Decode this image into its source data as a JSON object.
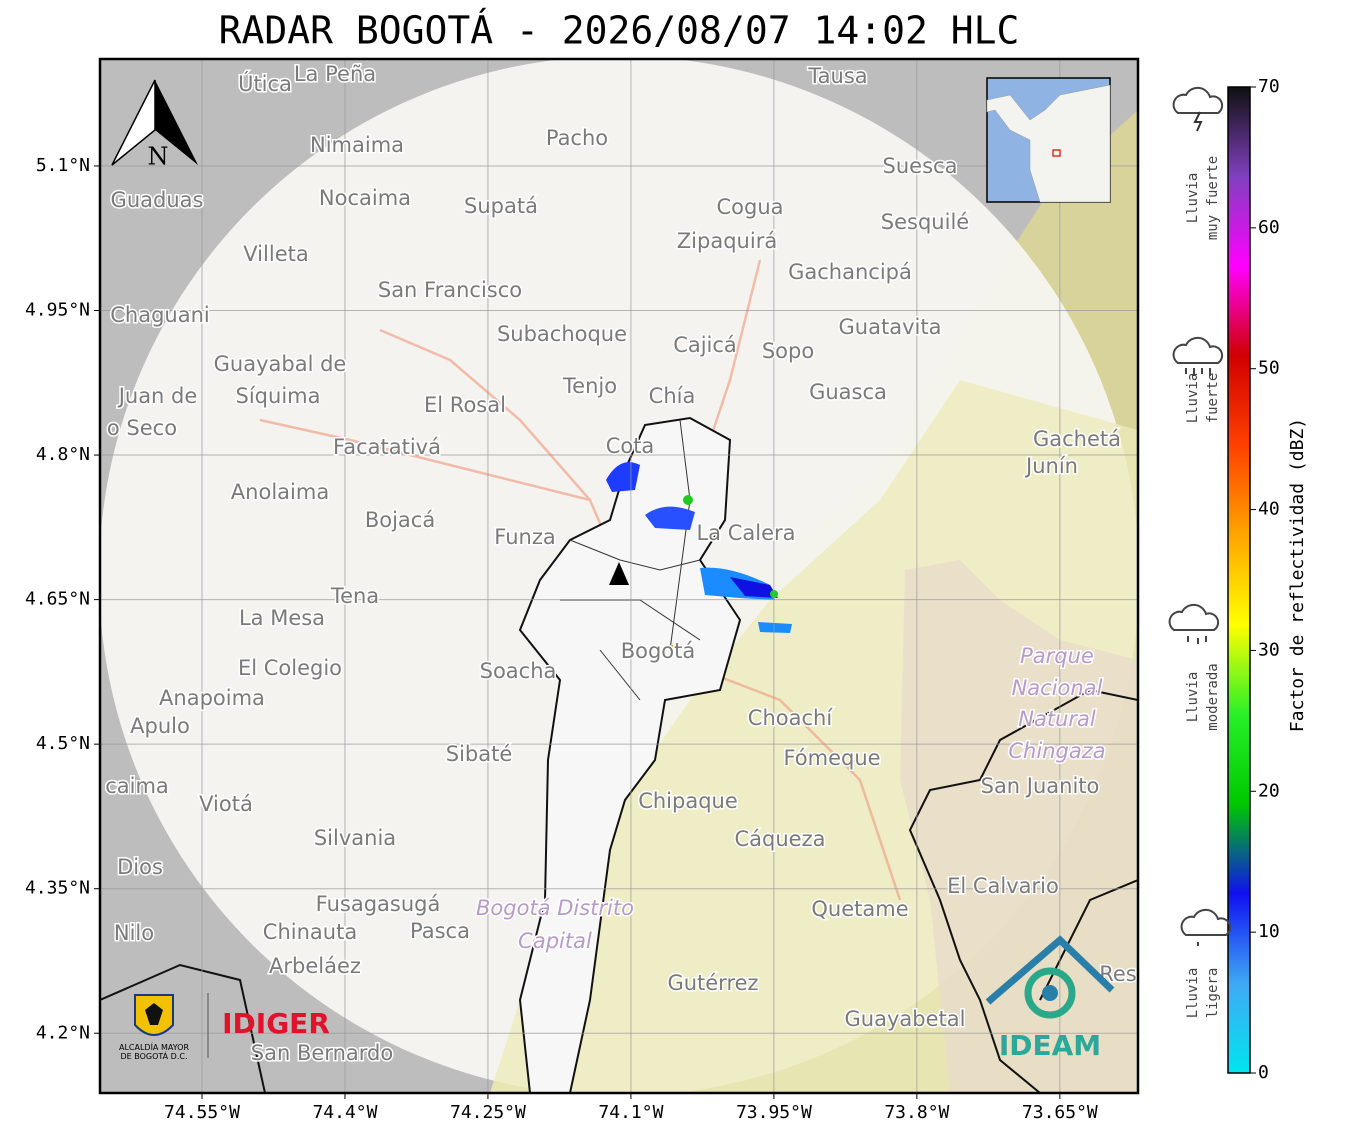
{
  "title": "RADAR BOGOTÁ - 2026/08/07 14:02 HLC",
  "map": {
    "xlim": [
      -74.657,
      -73.568
    ],
    "ylim": [
      4.138,
      5.211
    ],
    "xticks": [
      {
        "value": -74.55,
        "label": "74.55°W"
      },
      {
        "value": -74.4,
        "label": "74.4°W"
      },
      {
        "value": -74.25,
        "label": "74.25°W"
      },
      {
        "value": -74.1,
        "label": "74.1°W"
      },
      {
        "value": -73.95,
        "label": "73.95°W"
      },
      {
        "value": -73.8,
        "label": "73.8°W"
      },
      {
        "value": -73.65,
        "label": "73.65°W"
      }
    ],
    "yticks": [
      {
        "value": 5.1,
        "label": "5.1°N"
      },
      {
        "value": 4.95,
        "label": "4.95°N"
      },
      {
        "value": 4.8,
        "label": "4.8°N"
      },
      {
        "value": 4.65,
        "label": "4.65°N"
      },
      {
        "value": 4.5,
        "label": "4.5°N"
      },
      {
        "value": 4.35,
        "label": "4.35°N"
      },
      {
        "value": 4.2,
        "label": "4.2°N"
      }
    ],
    "grid": true,
    "north": "N",
    "places": [
      "Útica",
      "La Peña",
      "Tausa",
      "Pacho",
      "Nimaima",
      "Guaduas",
      "Nocaima",
      "Supatá",
      "Cogua",
      "Suesca",
      "Sesquilé",
      "Zipaquirá",
      "Villeta",
      "Gachancipá",
      "San Francisco",
      "Chaguani",
      "Guatavita",
      "Subachoque",
      "Cajicá",
      "Sopo",
      "Guayabal de",
      "Síquima",
      "Juan de",
      "o Seco",
      "Tenjo",
      "Chía",
      "El Rosal",
      "Guasca",
      "Gachetá",
      "Junín",
      "Facatativá",
      "Cota",
      "Anolaima",
      "Bojacá",
      "Funza",
      "La Calera",
      "Tena",
      "La Mesa",
      "El Colegio",
      "Bogotá",
      "Soacha",
      "Parque",
      "Nacional",
      "Natural",
      "Chingaza",
      "Anapoima",
      "Apulo",
      "Choachí",
      "Fómeque",
      "San Juanito",
      "Sibaté",
      "caima",
      "Viotá",
      "Chipaque",
      "Silvania",
      "Cáqueza",
      "Dios",
      "El Calvario",
      "Fusagasugá",
      "Bogotá Distrito",
      "Capital",
      "Quetame",
      "Nilo",
      "Chinauta",
      "Pasca",
      "Arbeláez",
      "Gutérrez",
      "Guayabetal",
      "San Bernardo",
      "Res"
    ]
  },
  "colorbar": {
    "label": "Factor de reflectividad (dBZ)",
    "lim": [
      0,
      70
    ],
    "ticks": [
      0,
      10,
      20,
      30,
      40,
      50,
      60,
      70
    ],
    "colors": [
      "#00e5ee",
      "#3fa9f5",
      "#1010f0",
      "#00c800",
      "#28f028",
      "#ffff00",
      "#ffa500",
      "#ff4000",
      "#d00000",
      "#ff00ff",
      "#8040c0",
      "#101010"
    ]
  },
  "rain_levels": [
    [
      "Lluvia",
      "muy fuerte"
    ],
    [
      "Lluvia",
      "fuerte"
    ],
    [
      "Lluvia",
      "moderada"
    ],
    [
      "Lluvia",
      "ligera"
    ]
  ],
  "logos": {
    "alcaldia": [
      "ALCALDÍA MAYOR",
      "DE BOGOTÁ D.C."
    ],
    "idiger": "IDIGER",
    "ideam": "IDEAM"
  }
}
